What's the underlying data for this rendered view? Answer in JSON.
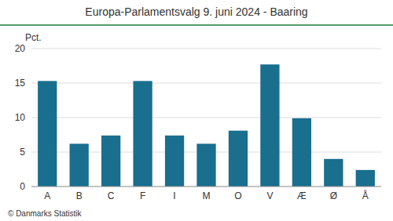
{
  "chart_data": {
    "type": "bar",
    "title": "Europa-Parlamentsvalg 9. juni 2024 - Baaring",
    "categories": [
      "A",
      "B",
      "C",
      "F",
      "I",
      "M",
      "O",
      "V",
      "Æ",
      "Ø",
      "Å"
    ],
    "values": [
      15.3,
      6.2,
      7.4,
      15.3,
      7.4,
      6.2,
      8.1,
      17.7,
      9.9,
      4.0,
      2.4
    ],
    "color": "#1a6e8e",
    "ylabel": "Pct.",
    "annotations": [
      "© Danmarks Statistik"
    ],
    "ylim": [
      0,
      20
    ],
    "yticks": [
      0,
      5,
      10,
      15,
      20
    ],
    "grid": true
  }
}
